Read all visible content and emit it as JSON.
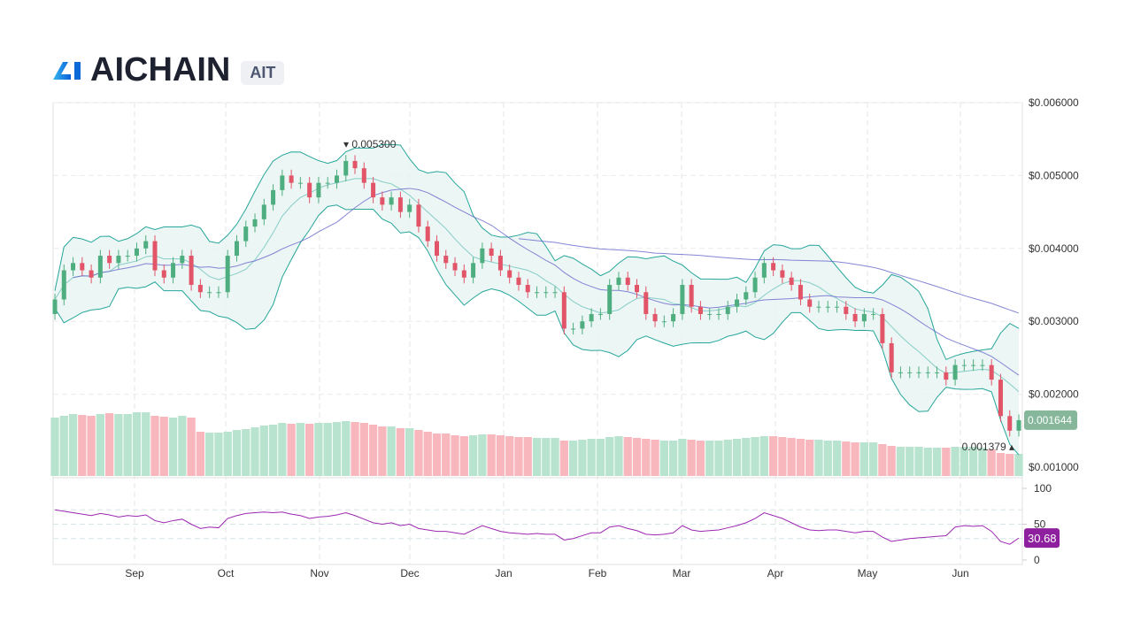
{
  "header": {
    "title": "AICHAIN",
    "symbol": "AIT"
  },
  "chart_data": {
    "type": "candlestick",
    "price_axis": {
      "ticks": [
        "$0.006000",
        "$0.005000",
        "$0.004000",
        "$0.003000",
        "$0.002000",
        "$0.001000"
      ],
      "range": [
        0.001,
        0.006
      ]
    },
    "rsi_axis": {
      "ticks": [
        "100",
        "50",
        "0"
      ],
      "range": [
        0,
        100
      ]
    },
    "x_ticks": [
      "Sep",
      "Oct",
      "Nov",
      "Dec",
      "Jan",
      "Feb",
      "Mar",
      "Apr",
      "May",
      "Jun"
    ],
    "grid": true,
    "annotations": {
      "high": "0.005300",
      "low": "0.001379",
      "last_price": "0.001644",
      "last_rsi": "30.68"
    },
    "closes": [
      0.0033,
      0.0037,
      0.0038,
      0.0037,
      0.0036,
      0.0039,
      0.0038,
      0.0039,
      0.0039,
      0.004,
      0.0041,
      0.0037,
      0.0036,
      0.0038,
      0.0039,
      0.0035,
      0.0034,
      0.0034,
      0.0034,
      0.0039,
      0.0041,
      0.0043,
      0.0044,
      0.0046,
      0.0048,
      0.005,
      0.0049,
      0.0049,
      0.0047,
      0.0049,
      0.0049,
      0.005,
      0.0052,
      0.0051,
      0.0049,
      0.0047,
      0.0046,
      0.0047,
      0.0045,
      0.0046,
      0.0043,
      0.0041,
      0.0039,
      0.0038,
      0.0037,
      0.0036,
      0.0038,
      0.004,
      0.0039,
      0.0037,
      0.0036,
      0.0035,
      0.0034,
      0.0034,
      0.0034,
      0.0034,
      0.0029,
      0.0029,
      0.003,
      0.0031,
      0.0031,
      0.0035,
      0.0036,
      0.0035,
      0.0034,
      0.0031,
      0.003,
      0.003,
      0.0031,
      0.0035,
      0.0032,
      0.0031,
      0.0031,
      0.0031,
      0.0032,
      0.0033,
      0.0034,
      0.0036,
      0.0038,
      0.0037,
      0.0036,
      0.0035,
      0.0033,
      0.0032,
      0.0032,
      0.0032,
      0.0032,
      0.0031,
      0.003,
      0.0031,
      0.0031,
      0.0027,
      0.0023,
      0.0023,
      0.0023,
      0.0023,
      0.0023,
      0.0023,
      0.0022,
      0.0024,
      0.0024,
      0.0024,
      0.0024,
      0.0022,
      0.0017,
      0.0015,
      0.001644
    ],
    "volumes": [
      66,
      68,
      70,
      69,
      68,
      70,
      71,
      70,
      70,
      72,
      72,
      68,
      67,
      66,
      68,
      66,
      50,
      49,
      49,
      50,
      52,
      53,
      55,
      57,
      58,
      60,
      59,
      60,
      59,
      60,
      60,
      61,
      62,
      61,
      60,
      58,
      56,
      56,
      54,
      54,
      52,
      50,
      48,
      48,
      46,
      45,
      46,
      47,
      47,
      46,
      45,
      44,
      44,
      43,
      43,
      43,
      40,
      40,
      41,
      42,
      42,
      44,
      45,
      44,
      43,
      42,
      41,
      40,
      40,
      42,
      41,
      40,
      40,
      40,
      41,
      42,
      43,
      44,
      45,
      45,
      44,
      43,
      42,
      41,
      41,
      40,
      40,
      39,
      38,
      38,
      38,
      36,
      34,
      33,
      33,
      33,
      32,
      32,
      32,
      33,
      33,
      33,
      32,
      30,
      26,
      25,
      25
    ],
    "rsi": [
      70,
      68,
      66,
      64,
      62,
      65,
      63,
      60,
      62,
      61,
      63,
      55,
      52,
      55,
      57,
      50,
      44,
      46,
      45,
      58,
      62,
      65,
      66,
      67,
      66,
      67,
      64,
      62,
      58,
      60,
      61,
      63,
      66,
      62,
      57,
      52,
      50,
      52,
      48,
      50,
      44,
      42,
      40,
      40,
      38,
      36,
      42,
      48,
      44,
      40,
      38,
      37,
      36,
      37,
      36,
      36,
      28,
      30,
      34,
      38,
      38,
      46,
      48,
      44,
      41,
      36,
      35,
      36,
      38,
      48,
      42,
      40,
      41,
      42,
      45,
      48,
      52,
      58,
      66,
      62,
      58,
      52,
      46,
      42,
      41,
      42,
      42,
      40,
      38,
      40,
      40,
      32,
      26,
      28,
      30,
      31,
      32,
      33,
      34,
      46,
      48,
      47,
      48,
      40,
      26,
      22,
      30.68
    ]
  },
  "colors": {
    "up": "#4fae7f",
    "down": "#e25568",
    "vol_up": "#b8e4cf",
    "vol_down": "#f8b6bd",
    "band": "#26a69a",
    "band_fill": "#e8f5f3",
    "ma": "#6666cc",
    "rsi": "#9c27b0",
    "last_price_bg": "#86b79b",
    "rsi_badge_bg": "#8e1f9e"
  }
}
